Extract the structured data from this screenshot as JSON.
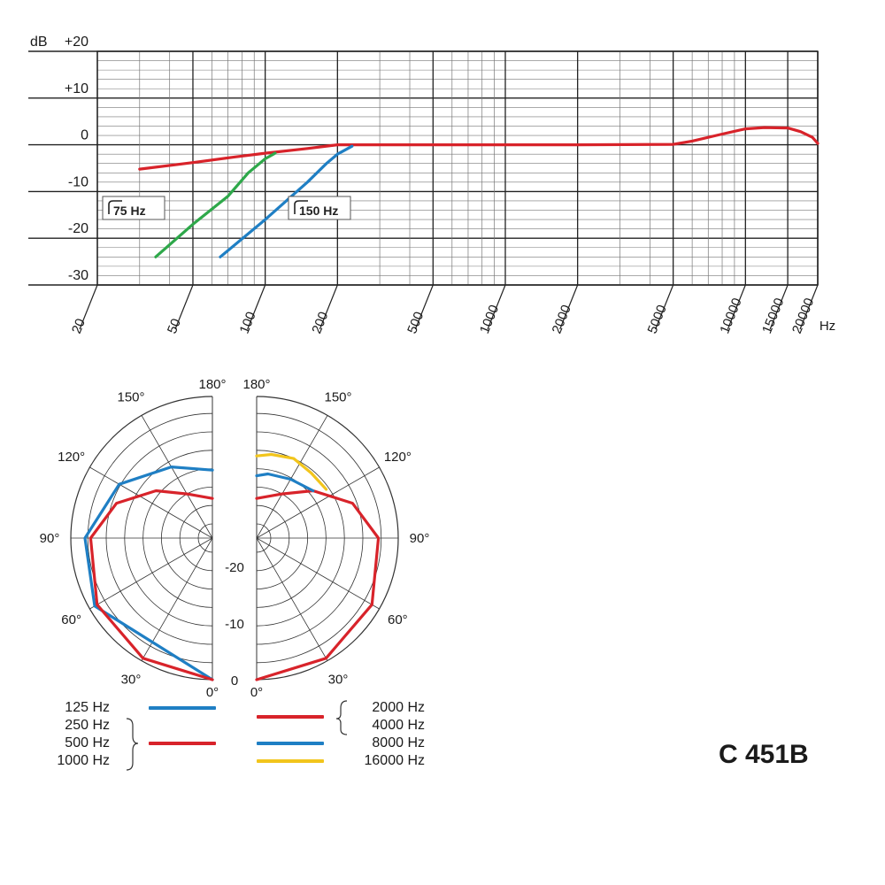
{
  "chart_data": [
    {
      "type": "line",
      "title": "",
      "xlabel": "Hz",
      "ylabel": "dB",
      "x_scale": "log",
      "xlim": [
        20,
        20000
      ],
      "ylim": [
        -30,
        20
      ],
      "x_ticks": [
        "20",
        "50",
        "100",
        "200",
        "500",
        "1000",
        "2000",
        "5000",
        "10000",
        "15000",
        "20000"
      ],
      "y_ticks": [
        "+20",
        "+10",
        "0",
        "-10",
        "-20",
        "-30"
      ],
      "grid": true,
      "annotations": [
        "75 Hz",
        "150 Hz"
      ],
      "series": [
        {
          "color": "#d8232a",
          "points": [
            [
              30,
              -5.2
            ],
            [
              50,
              -3.8
            ],
            [
              75,
              -2.6
            ],
            [
              100,
              -1.8
            ],
            [
              150,
              -0.8
            ],
            [
              200,
              0
            ],
            [
              500,
              0
            ],
            [
              1000,
              0
            ],
            [
              2000,
              0
            ],
            [
              5000,
              0.1
            ],
            [
              6000,
              0.8
            ],
            [
              8000,
              2.3
            ],
            [
              10000,
              3.4
            ],
            [
              12000,
              3.7
            ],
            [
              15000,
              3.6
            ],
            [
              17000,
              2.8
            ],
            [
              19000,
              1.6
            ],
            [
              20000,
              0.3
            ]
          ]
        },
        {
          "color": "#2ea84a",
          "points": [
            [
              35,
              -24
            ],
            [
              50,
              -17
            ],
            [
              70,
              -11
            ],
            [
              85,
              -6
            ],
            [
              100,
              -3
            ],
            [
              110,
              -1.8
            ]
          ]
        },
        {
          "color": "#1f7fc4",
          "points": [
            [
              65,
              -24
            ],
            [
              100,
              -16
            ],
            [
              150,
              -8
            ],
            [
              180,
              -4
            ],
            [
              200,
              -2
            ],
            [
              230,
              -0.3
            ]
          ]
        }
      ]
    },
    {
      "type": "polar",
      "angle_labels": {
        "left": [
          "180°",
          "150°",
          "120°",
          "90°",
          "60°",
          "30°",
          "0°"
        ],
        "right": [
          "180°",
          "150°",
          "120°",
          "90°",
          "60°",
          "30°",
          "0°"
        ]
      },
      "radial_labels": [
        "-20",
        "-10",
        "0"
      ],
      "rlim": [
        -25,
        0
      ],
      "series": [
        {
          "name": "125 Hz",
          "side": "left",
          "color": "#1f7fc4",
          "points": [
            [
              0,
              0
            ],
            [
              60,
              -1
            ],
            [
              90,
              -2.5
            ],
            [
              120,
              -6
            ],
            [
              150,
              -10.5
            ],
            [
              180,
              -13
            ]
          ]
        },
        {
          "name": "250 Hz / 500 Hz / 1000 Hz",
          "side": "left",
          "color": "#d8232a",
          "points": [
            [
              0,
              0
            ],
            [
              30,
              -0.5
            ],
            [
              60,
              -1.5
            ],
            [
              90,
              -3.5
            ],
            [
              110,
              -7
            ],
            [
              130,
              -12
            ],
            [
              150,
              -16
            ],
            [
              180,
              -18
            ]
          ]
        },
        {
          "name": "2000 Hz / 4000 Hz",
          "side": "right",
          "color": "#d8232a",
          "points": [
            [
              0,
              0
            ],
            [
              30,
              -0.5
            ],
            [
              60,
              -1.5
            ],
            [
              90,
              -3.5
            ],
            [
              110,
              -7
            ],
            [
              130,
              -12
            ],
            [
              150,
              -16
            ],
            [
              180,
              -18
            ]
          ]
        },
        {
          "name": "8000 Hz",
          "side": "right",
          "color": "#1f7fc4",
          "points": [
            [
              130,
              -12
            ],
            [
              150,
              -13
            ],
            [
              170,
              -13.5
            ],
            [
              180,
              -14
            ]
          ]
        },
        {
          "name": "16000 Hz",
          "side": "right",
          "color": "#f2c51c",
          "points": [
            [
              125,
              -10
            ],
            [
              140,
              -10
            ],
            [
              155,
              -9.5
            ],
            [
              170,
              -10
            ],
            [
              180,
              -10.5
            ]
          ]
        }
      ]
    }
  ],
  "legend": {
    "left": [
      {
        "label": "125 Hz",
        "color": "#1f7fc4"
      },
      {
        "label": "250 Hz",
        "color": "#d8232a"
      },
      {
        "label": "500 Hz",
        "color": "#d8232a"
      },
      {
        "label": "1000 Hz",
        "color": "#d8232a"
      }
    ],
    "right": [
      {
        "label": "2000 Hz",
        "color": "#d8232a"
      },
      {
        "label": "4000 Hz",
        "color": "#d8232a"
      },
      {
        "label": "8000 Hz",
        "color": "#1f7fc4"
      },
      {
        "label": "16000 Hz",
        "color": "#f2c51c"
      }
    ]
  },
  "model": "C 451B"
}
